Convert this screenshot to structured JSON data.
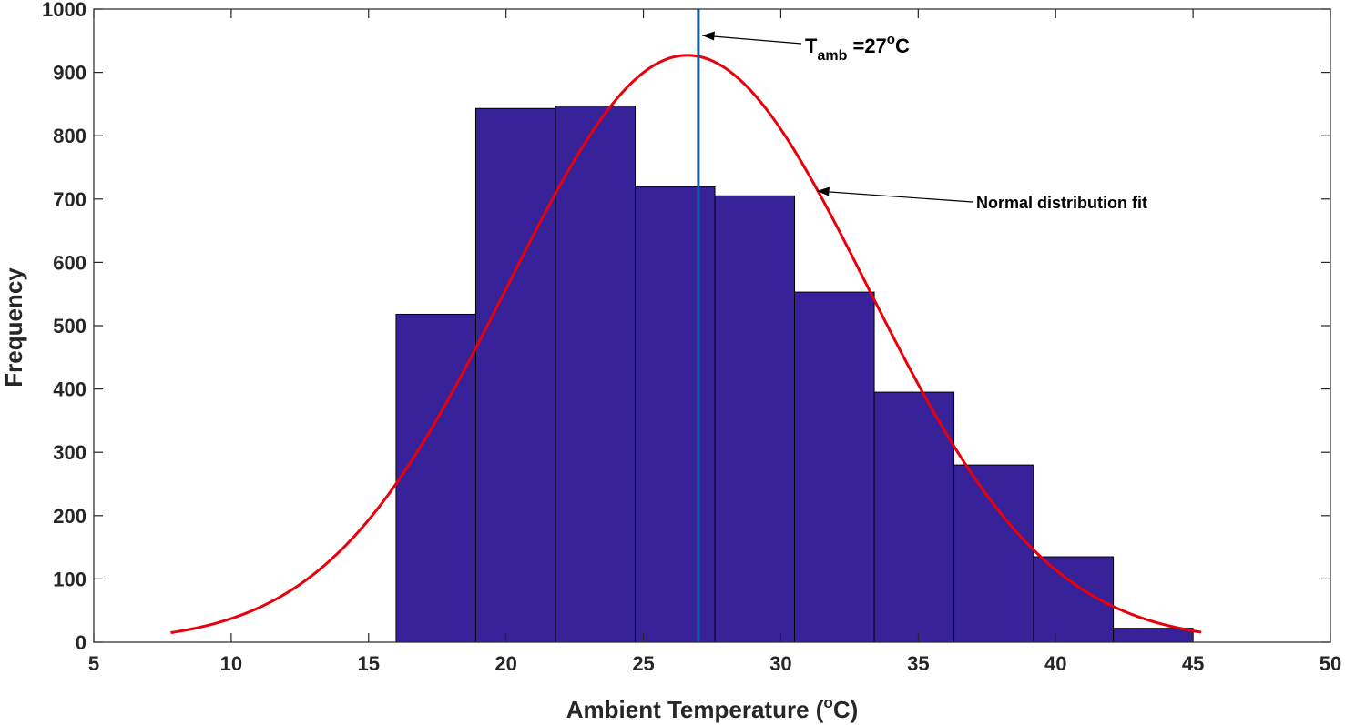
{
  "chart_data": {
    "type": "bar",
    "subtype": "histogram",
    "xlabel_main": "Ambient Temperature (",
    "xlabel_sup": "o",
    "xlabel_end": "C)",
    "ylabel": "Frequency",
    "xlim": [
      5,
      50
    ],
    "ylim": [
      0,
      1000
    ],
    "xticks": [
      "5",
      "10",
      "15",
      "20",
      "25",
      "30",
      "35",
      "40",
      "45",
      "50"
    ],
    "yticks": [
      "0",
      "100",
      "200",
      "300",
      "400",
      "500",
      "600",
      "700",
      "800",
      "900",
      "1000"
    ],
    "grid": false,
    "bin_edges": [
      16,
      18.9,
      21.8,
      24.7,
      27.6,
      30.5,
      33.4,
      36.3,
      39.2,
      42.1,
      45
    ],
    "values": [
      518,
      843,
      847,
      719,
      705,
      553,
      395,
      280,
      135,
      22
    ],
    "fit": {
      "type": "normal",
      "mean": 26.6,
      "sd": 6.55,
      "peak": 927,
      "x_range": [
        7.8,
        45.3
      ]
    },
    "vline": {
      "x": 27
    },
    "annotations": {
      "tamb_T": "T",
      "tamb_sub": "amb",
      "tamb_value": " =27",
      "tamb_sup": "o",
      "tamb_unit": "C",
      "fit_label": "Normal distribution fit"
    },
    "colors": {
      "bar_fill": "#38229A",
      "bar_edge": "#000000",
      "fit_line": "#E8000B",
      "vline": "#0B5DA8",
      "axis": "#262626"
    }
  }
}
